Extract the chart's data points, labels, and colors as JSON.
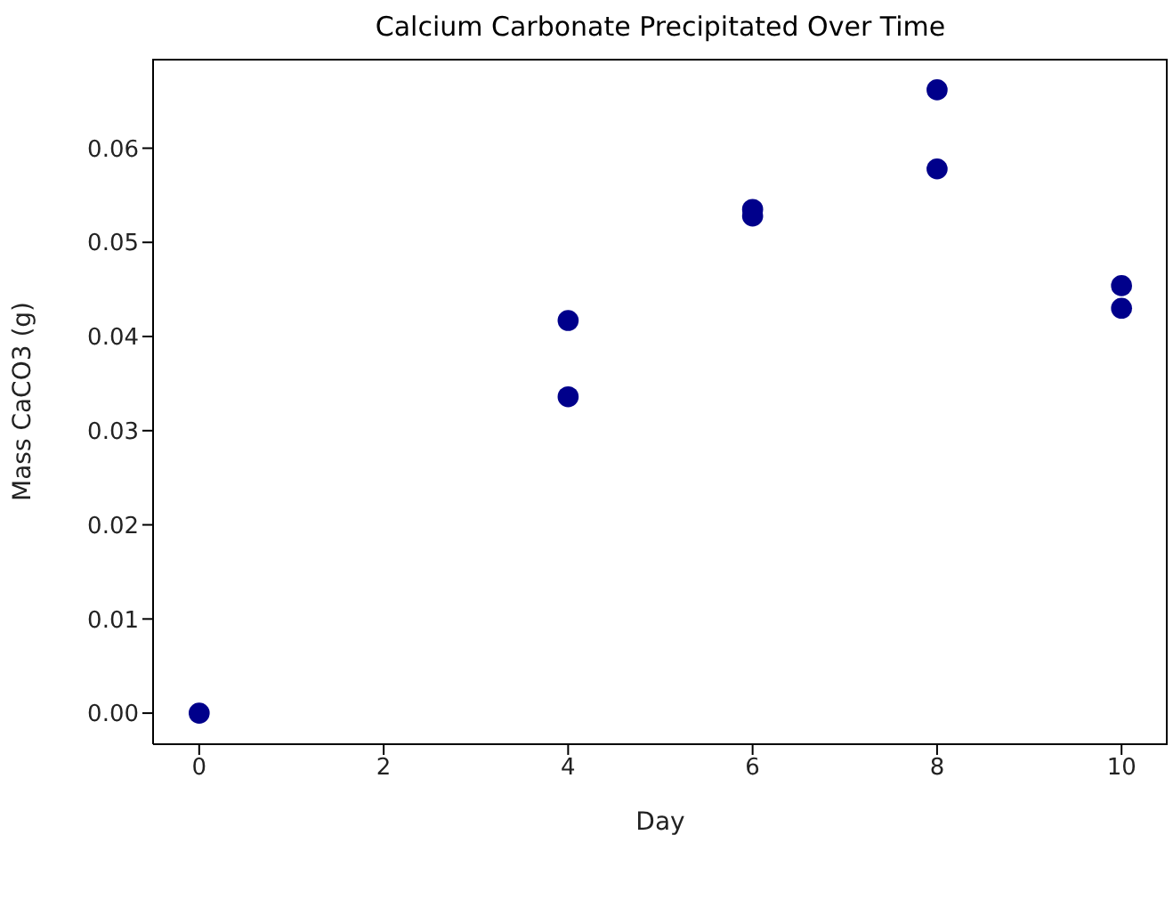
{
  "chart_data": {
    "type": "scatter",
    "title": "Calcium Carbonate Precipitated Over Time",
    "xlabel": "Day",
    "ylabel": "Mass CaCO3 (g)",
    "x": [
      0,
      4,
      4,
      6,
      6,
      8,
      8,
      10,
      10
    ],
    "series": [
      {
        "color": "#00008b",
        "values": [
          0,
          0.0417,
          0.0336,
          0.0535,
          0.0528,
          0.0662,
          0.0578,
          0.0454,
          0.043
        ]
      }
    ],
    "xlim": [
      -0.5,
      10.5
    ],
    "xticks": [
      0,
      2,
      4,
      6,
      8,
      10
    ],
    "ylim": [
      -0.0033,
      0.0695
    ],
    "yticks": [
      {
        "value": 0,
        "label": "0.00"
      },
      0.01,
      0.02,
      0.03,
      0.04,
      0.05,
      0.06
    ],
    "marker": "circle",
    "grid": false,
    "legend": false
  }
}
